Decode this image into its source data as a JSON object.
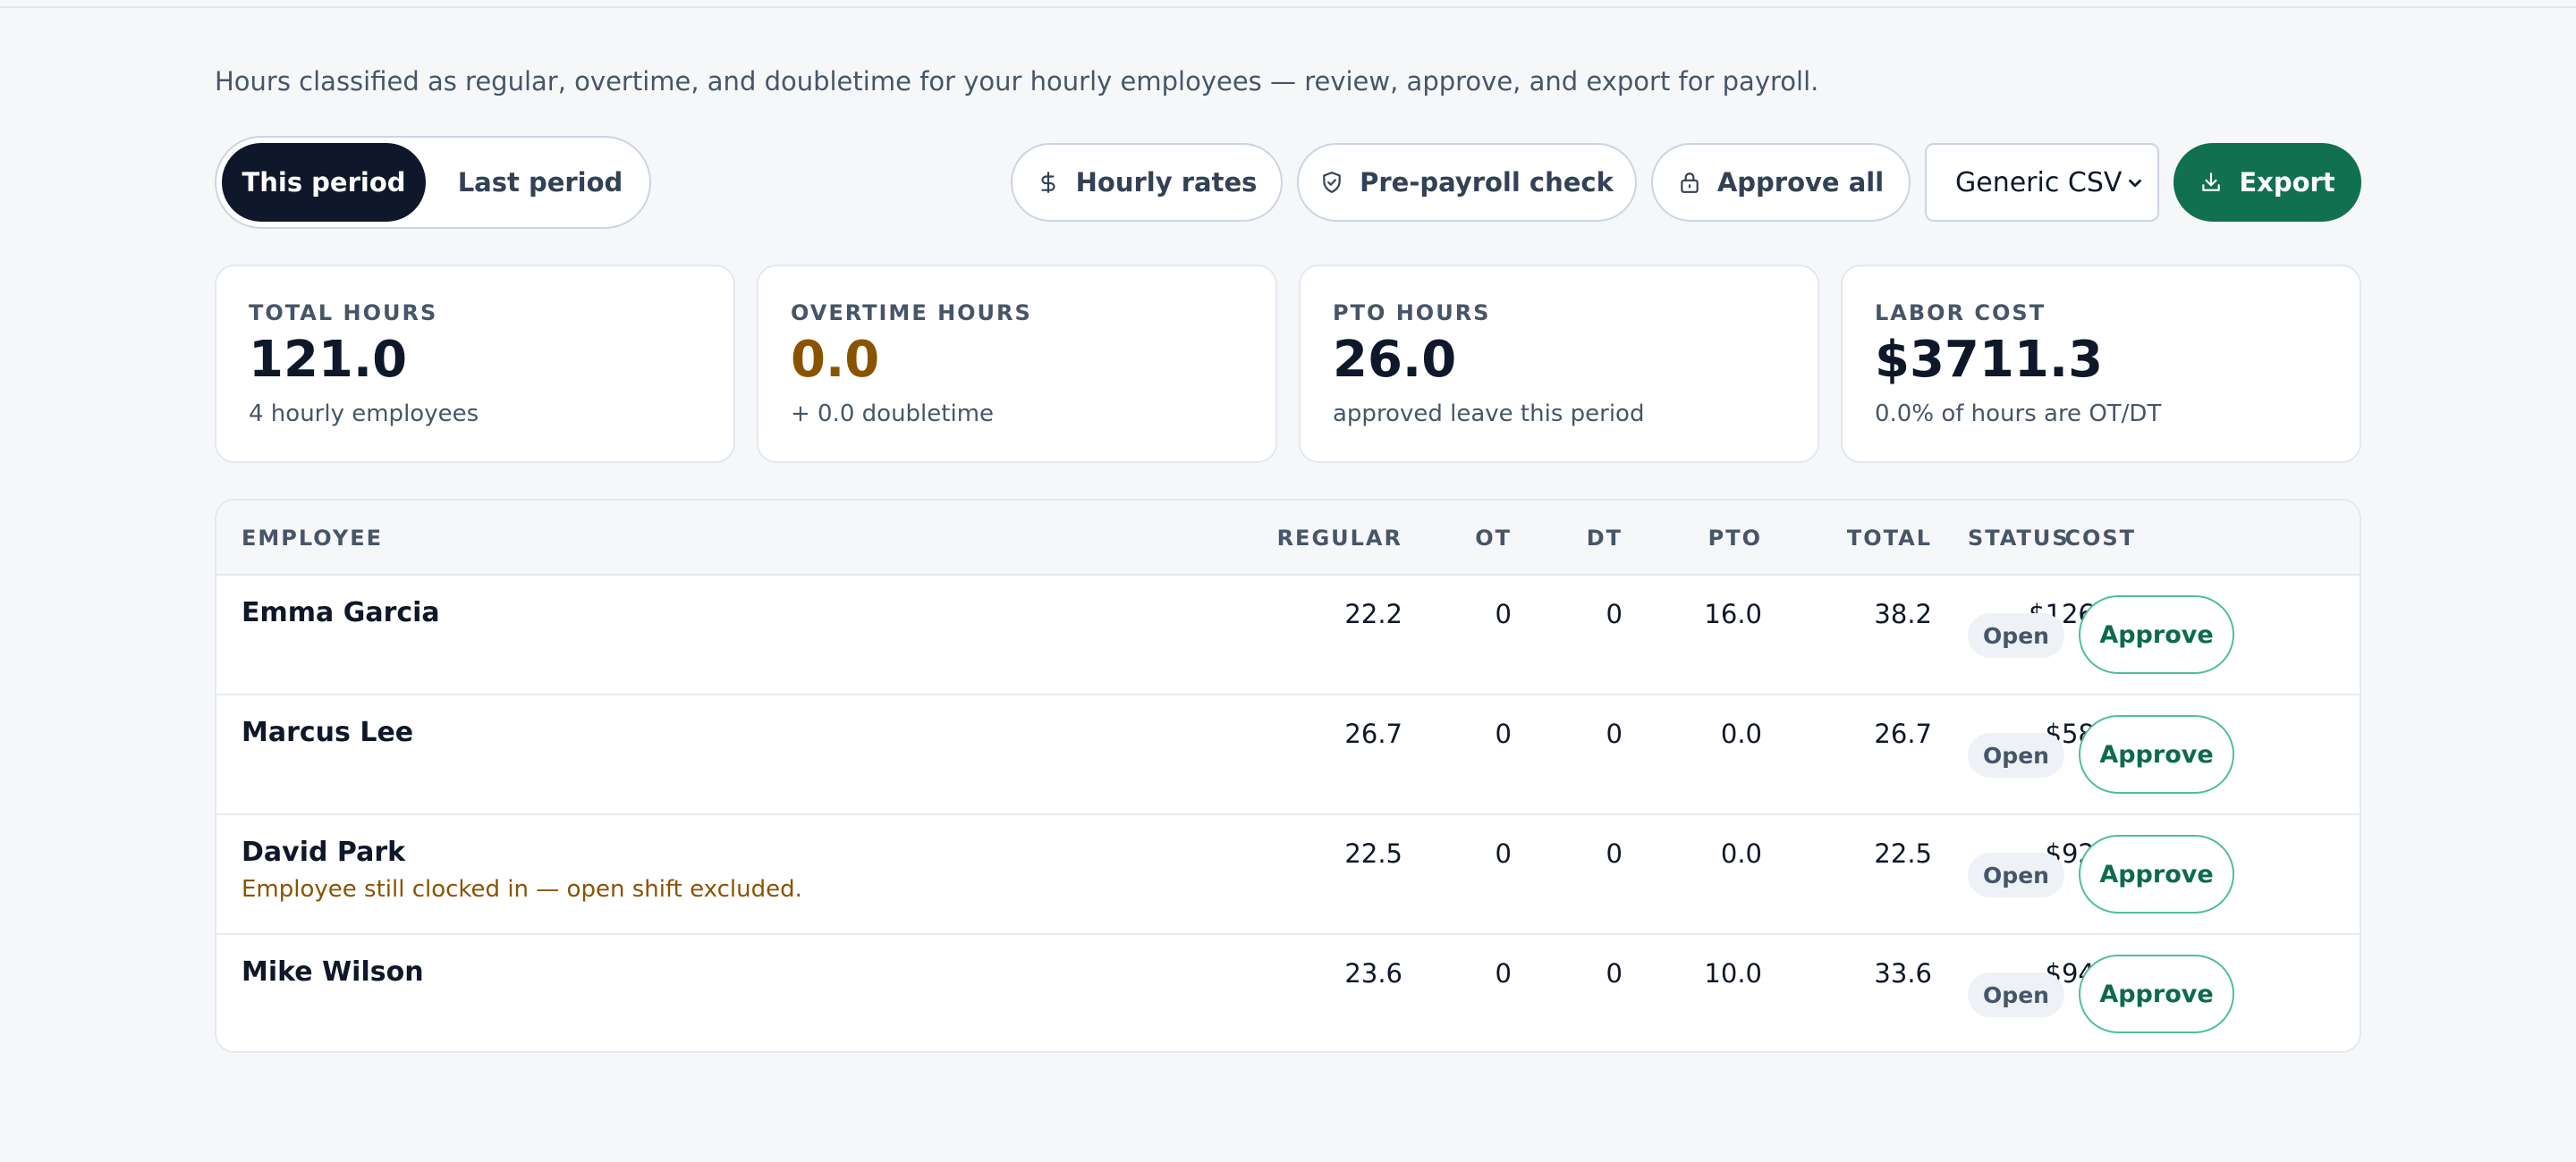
{
  "header": {
    "subtitle": "Hours classified as regular, overtime, and doubletime for your hourly employees — review, approve, and export for payroll."
  },
  "toolbar": {
    "period_tabs": [
      {
        "label": "This period",
        "active": true
      },
      {
        "label": "Last period",
        "active": false
      }
    ],
    "hourly_rates_label": "Hourly rates",
    "pre_payroll_label": "Pre-payroll check",
    "approve_all_label": "Approve all",
    "format_select": {
      "selected": "Generic CSV"
    },
    "export_label": "Export",
    "icons": [
      "dollar-icon",
      "shield-check-icon",
      "lock-icon",
      "download-icon",
      "chevron-down-icon"
    ],
    "accent_color": "#11704f"
  },
  "stats": [
    {
      "label": "TOTAL HOURS",
      "value": "121.0",
      "sub": "4 hourly employees"
    },
    {
      "label": "OVERTIME HOURS",
      "value": "0.0",
      "sub": "+ 0.0 doubletime",
      "color": "#8a5300"
    },
    {
      "label": "PTO HOURS",
      "value": "26.0",
      "sub": "approved leave this period"
    },
    {
      "label": "LABOR COST",
      "value": "$3711.3",
      "sub": "0.0% of hours are OT/DT"
    }
  ],
  "table": {
    "headers": {
      "employee": "EMPLOYEE",
      "regular": "REGULAR",
      "ot": "OT",
      "dt": "DT",
      "pto": "PTO",
      "total": "TOTAL",
      "cost": "COST",
      "status": "STATUS"
    },
    "rows": [
      {
        "name": "Emma Garcia",
        "note": "",
        "regular": "22.2",
        "ot": "0",
        "dt": "0",
        "pto": "16.0",
        "total": "38.2",
        "cost": "$1260.6",
        "status": "Open",
        "action": "Approve"
      },
      {
        "name": "Marcus Lee",
        "note": "",
        "regular": "26.7",
        "ot": "0",
        "dt": "0",
        "pto": "0.0",
        "total": "26.7",
        "cost": "$587.4",
        "status": "Open",
        "action": "Approve"
      },
      {
        "name": "David Park",
        "note": "Employee still clocked in — open shift excluded.",
        "regular": "22.5",
        "ot": "0",
        "dt": "0",
        "pto": "0.0",
        "total": "22.5",
        "cost": "$922.5",
        "status": "Open",
        "action": "Approve"
      },
      {
        "name": "Mike Wilson",
        "note": "",
        "regular": "23.6",
        "ot": "0",
        "dt": "0",
        "pto": "10.0",
        "total": "33.6",
        "cost": "$940.8",
        "status": "Open",
        "action": "Approve"
      }
    ]
  }
}
